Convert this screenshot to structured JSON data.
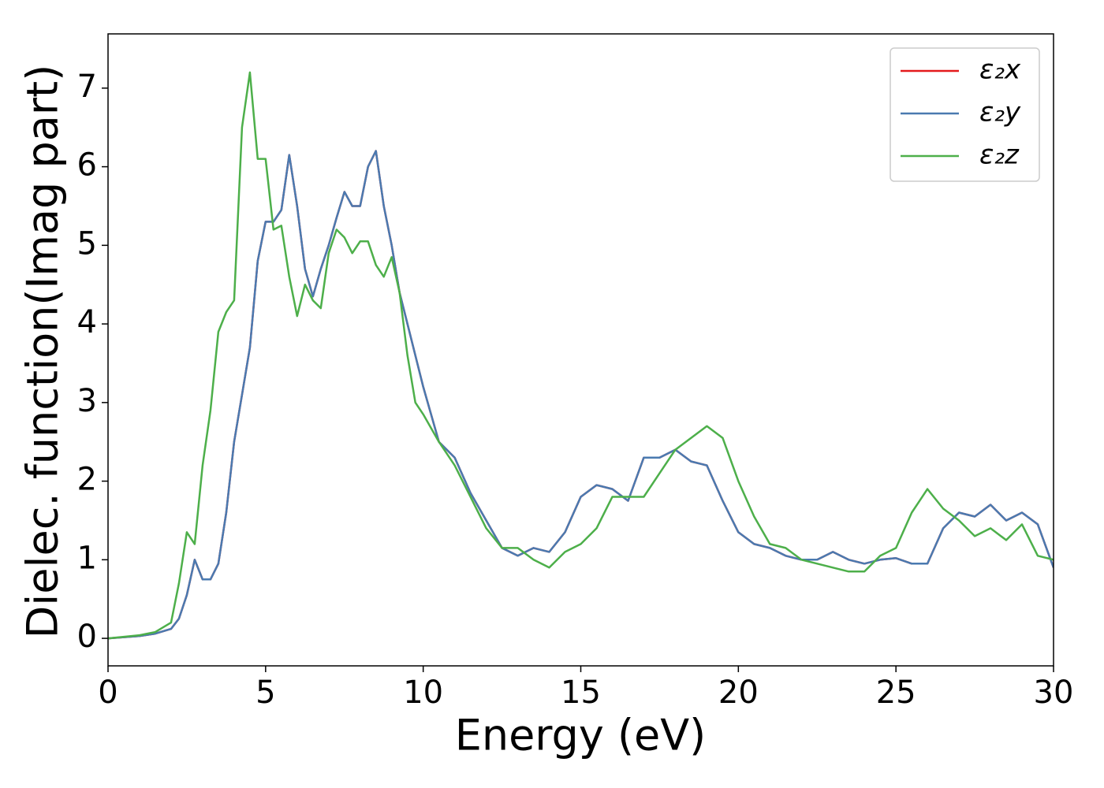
{
  "chart_data": {
    "type": "line",
    "xlabel": "Energy (eV)",
    "ylabel": "Dielec. function(Imag part)",
    "x": [
      0,
      1,
      1.5,
      2,
      2.25,
      2.5,
      2.75,
      3,
      3.25,
      3.5,
      3.75,
      4,
      4.25,
      4.5,
      4.75,
      5,
      5.25,
      5.5,
      5.75,
      6,
      6.25,
      6.5,
      6.75,
      7,
      7.25,
      7.5,
      7.75,
      8,
      8.25,
      8.5,
      8.75,
      9,
      9.25,
      9.5,
      9.75,
      10,
      10.5,
      11,
      11.5,
      12,
      12.5,
      13,
      13.5,
      14,
      14.5,
      15,
      15.5,
      16,
      16.5,
      17,
      17.5,
      18,
      18.5,
      19,
      19.5,
      20,
      20.5,
      21,
      21.5,
      22,
      22.5,
      23,
      23.5,
      24,
      24.5,
      25,
      25.5,
      26,
      26.5,
      27,
      27.5,
      28,
      28.5,
      29,
      29.5,
      30
    ],
    "series": [
      {
        "name": "ε₂x",
        "color": "#e41a1c",
        "values": [
          0,
          0.03,
          0.06,
          0.12,
          0.25,
          0.55,
          1.0,
          0.75,
          0.75,
          0.95,
          1.6,
          2.5,
          3.1,
          3.7,
          4.8,
          5.3,
          5.3,
          5.45,
          6.15,
          5.5,
          4.7,
          4.35,
          4.7,
          5.0,
          5.35,
          5.68,
          5.5,
          5.5,
          6.0,
          6.2,
          5.5,
          5.0,
          4.4,
          4.0,
          3.6,
          3.2,
          2.5,
          2.3,
          1.85,
          1.5,
          1.15,
          1.05,
          1.15,
          1.1,
          1.35,
          1.8,
          1.95,
          1.9,
          1.75,
          2.3,
          2.3,
          2.4,
          2.25,
          2.2,
          1.75,
          1.35,
          1.2,
          1.15,
          1.05,
          1.0,
          1.0,
          1.1,
          1.0,
          0.95,
          1.0,
          1.02,
          0.95,
          0.95,
          1.4,
          1.6,
          1.55,
          1.7,
          1.5,
          1.6,
          1.45,
          0.9
        ]
      },
      {
        "name": "ε₂y",
        "color": "#4a7ab0",
        "values": [
          0,
          0.03,
          0.06,
          0.12,
          0.25,
          0.55,
          1.0,
          0.75,
          0.75,
          0.95,
          1.6,
          2.5,
          3.1,
          3.7,
          4.8,
          5.3,
          5.3,
          5.45,
          6.15,
          5.5,
          4.7,
          4.35,
          4.7,
          5.0,
          5.35,
          5.68,
          5.5,
          5.5,
          6.0,
          6.2,
          5.5,
          5.0,
          4.4,
          4.0,
          3.6,
          3.2,
          2.5,
          2.3,
          1.85,
          1.5,
          1.15,
          1.05,
          1.15,
          1.1,
          1.35,
          1.8,
          1.95,
          1.9,
          1.75,
          2.3,
          2.3,
          2.4,
          2.25,
          2.2,
          1.75,
          1.35,
          1.2,
          1.15,
          1.05,
          1.0,
          1.0,
          1.1,
          1.0,
          0.95,
          1.0,
          1.02,
          0.95,
          0.95,
          1.4,
          1.6,
          1.55,
          1.7,
          1.5,
          1.6,
          1.45,
          0.9
        ]
      },
      {
        "name": "ε₂z",
        "color": "#4daf4a",
        "values": [
          0,
          0.04,
          0.08,
          0.2,
          0.7,
          1.35,
          1.2,
          2.2,
          2.9,
          3.9,
          4.15,
          4.3,
          6.5,
          7.2,
          6.1,
          6.1,
          5.2,
          5.25,
          4.6,
          4.1,
          4.5,
          4.3,
          4.2,
          4.9,
          5.2,
          5.1,
          4.9,
          5.05,
          5.05,
          4.75,
          4.6,
          4.85,
          4.4,
          3.6,
          3.0,
          2.85,
          2.5,
          2.2,
          1.8,
          1.4,
          1.15,
          1.15,
          1.0,
          0.9,
          1.1,
          1.2,
          1.4,
          1.8,
          1.8,
          1.8,
          2.1,
          2.4,
          2.55,
          2.7,
          2.55,
          2.0,
          1.55,
          1.2,
          1.15,
          1.0,
          0.95,
          0.9,
          0.85,
          0.85,
          1.05,
          1.15,
          1.6,
          1.9,
          1.65,
          1.5,
          1.3,
          1.4,
          1.25,
          1.45,
          1.05,
          1.0
        ]
      }
    ],
    "xlim": [
      0,
      30
    ],
    "xticks": [
      0,
      5,
      10,
      15,
      20,
      25,
      30
    ],
    "ylim": [
      -0.35,
      7.69
    ],
    "yticks": [
      0,
      1,
      2,
      3,
      4,
      5,
      6,
      7
    ],
    "legend": "upper right",
    "grid": false
  }
}
